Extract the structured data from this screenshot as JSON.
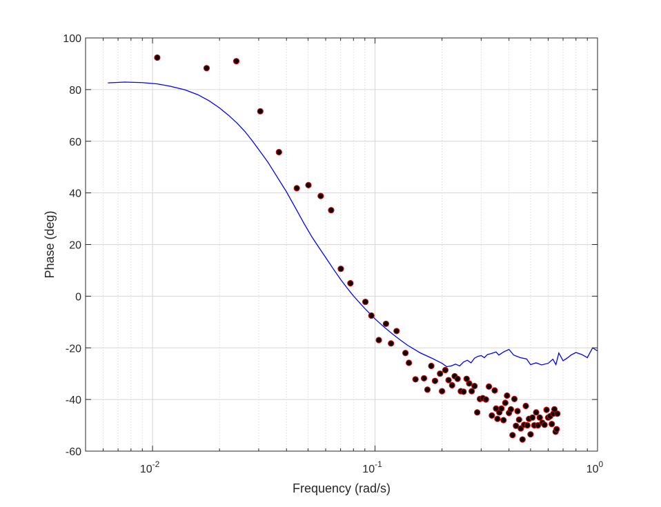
{
  "chart_data": {
    "type": "scatter",
    "xlabel": "Frequency (rad/s)",
    "ylabel": "Phase (deg)",
    "x_scale": "log",
    "xlim": [
      0.005,
      1
    ],
    "ylim": [
      -60,
      100
    ],
    "grid": true,
    "minor_grid_x": true,
    "x_tick_labels": [
      {
        "value": 0.01,
        "base": "10",
        "exp": "-2"
      },
      {
        "value": 0.1,
        "base": "10",
        "exp": "-1"
      },
      {
        "value": 1,
        "base": "10",
        "exp": "0"
      }
    ],
    "y_ticks": [
      -60,
      -40,
      -20,
      0,
      20,
      40,
      60,
      80,
      100
    ],
    "series": [
      {
        "kind": "line",
        "color": "#0000ff",
        "points": [
          [
            0.0063,
            82.6
          ],
          [
            0.0075,
            82.9
          ],
          [
            0.009,
            82.7
          ],
          [
            0.0105,
            82.2
          ],
          [
            0.012,
            81.3
          ],
          [
            0.014,
            79.9
          ],
          [
            0.016,
            78.0
          ],
          [
            0.018,
            75.6
          ],
          [
            0.02,
            72.9
          ],
          [
            0.022,
            70.0
          ],
          [
            0.024,
            67.0
          ],
          [
            0.026,
            63.8
          ],
          [
            0.028,
            60.3
          ],
          [
            0.03,
            56.8
          ],
          [
            0.033,
            51.9
          ],
          [
            0.036,
            46.7
          ],
          [
            0.04,
            40.4
          ],
          [
            0.044,
            34.0
          ],
          [
            0.048,
            28.1
          ],
          [
            0.052,
            23.0
          ],
          [
            0.056,
            18.8
          ],
          [
            0.06,
            15.0
          ],
          [
            0.065,
            10.5
          ],
          [
            0.07,
            6.5
          ],
          [
            0.075,
            3.1
          ],
          [
            0.08,
            0.1
          ],
          [
            0.09,
            -4.8
          ],
          [
            0.1,
            -8.8
          ],
          [
            0.11,
            -12.0
          ],
          [
            0.12,
            -14.7
          ],
          [
            0.13,
            -17.0
          ],
          [
            0.14,
            -19.0
          ],
          [
            0.16,
            -22.0
          ],
          [
            0.18,
            -24.0
          ],
          [
            0.2,
            -26.0
          ],
          [
            0.21,
            -27.3
          ],
          [
            0.22,
            -27.0
          ],
          [
            0.23,
            -26.3
          ],
          [
            0.24,
            -27.0
          ],
          [
            0.25,
            -25.5
          ],
          [
            0.26,
            -24.8
          ],
          [
            0.27,
            -25.8
          ],
          [
            0.28,
            -24.0
          ],
          [
            0.29,
            -23.3
          ],
          [
            0.3,
            -23.0
          ],
          [
            0.31,
            -23.8
          ],
          [
            0.32,
            -22.6
          ],
          [
            0.33,
            -22.3
          ],
          [
            0.35,
            -21.6
          ],
          [
            0.36,
            -22.8
          ],
          [
            0.38,
            -21.5
          ],
          [
            0.4,
            -20.6
          ],
          [
            0.42,
            -22.8
          ],
          [
            0.45,
            -23.8
          ],
          [
            0.48,
            -24.3
          ],
          [
            0.5,
            -26.5
          ],
          [
            0.53,
            -25.8
          ],
          [
            0.56,
            -26.6
          ],
          [
            0.6,
            -26.0
          ],
          [
            0.63,
            -24.4
          ],
          [
            0.65,
            -26.5
          ],
          [
            0.67,
            -22.0
          ],
          [
            0.7,
            -25.0
          ],
          [
            0.73,
            -24.0
          ],
          [
            0.76,
            -22.8
          ],
          [
            0.8,
            -21.8
          ],
          [
            0.85,
            -22.6
          ],
          [
            0.9,
            -23.8
          ],
          [
            0.95,
            -20.0
          ],
          [
            1.0,
            -21.2
          ]
        ]
      },
      {
        "kind": "scatter",
        "marker_fill": "#000000",
        "marker_edge": "#cc0000",
        "points": [
          [
            0.0105,
            92.4
          ],
          [
            0.0175,
            88.3
          ],
          [
            0.0238,
            91.0
          ],
          [
            0.0305,
            71.6
          ],
          [
            0.037,
            55.8
          ],
          [
            0.0445,
            41.8
          ],
          [
            0.0502,
            43.0
          ],
          [
            0.057,
            38.8
          ],
          [
            0.0635,
            33.3
          ],
          [
            0.0702,
            10.6
          ],
          [
            0.0775,
            5.0
          ],
          [
            0.0905,
            -2.2
          ],
          [
            0.0963,
            -7.5
          ],
          [
            0.104,
            -17.0
          ],
          [
            0.112,
            -10.7
          ],
          [
            0.118,
            -18.3
          ],
          [
            0.125,
            -13.5
          ],
          [
            0.137,
            -22.0
          ],
          [
            0.142,
            -25.8
          ],
          [
            0.152,
            -32.2
          ],
          [
            0.166,
            -31.8
          ],
          [
            0.172,
            -36.2
          ],
          [
            0.179,
            -27.0
          ],
          [
            0.186,
            -32.8
          ],
          [
            0.196,
            -30.0
          ],
          [
            0.2,
            -36.8
          ],
          [
            0.207,
            -28.6
          ],
          [
            0.214,
            -32.5
          ],
          [
            0.222,
            -34.5
          ],
          [
            0.228,
            -31.0
          ],
          [
            0.235,
            -32.0
          ],
          [
            0.243,
            -36.8
          ],
          [
            0.25,
            -37.0
          ],
          [
            0.258,
            -32.0
          ],
          [
            0.265,
            -33.8
          ],
          [
            0.272,
            -36.8
          ],
          [
            0.28,
            -34.8
          ],
          [
            0.288,
            -45.0
          ],
          [
            0.296,
            -39.8
          ],
          [
            0.305,
            -39.5
          ],
          [
            0.315,
            -40.0
          ],
          [
            0.325,
            -35.0
          ],
          [
            0.335,
            -46.2
          ],
          [
            0.345,
            -36.5
          ],
          [
            0.35,
            -43.5
          ],
          [
            0.355,
            -47.5
          ],
          [
            0.362,
            -45.0
          ],
          [
            0.37,
            -43.5
          ],
          [
            0.378,
            -48.0
          ],
          [
            0.385,
            -41.3
          ],
          [
            0.392,
            -38.5
          ],
          [
            0.4,
            -45.2
          ],
          [
            0.408,
            -43.8
          ],
          [
            0.415,
            -53.8
          ],
          [
            0.423,
            -39.8
          ],
          [
            0.43,
            -50.2
          ],
          [
            0.437,
            -44.5
          ],
          [
            0.444,
            -47.8
          ],
          [
            0.452,
            -51.2
          ],
          [
            0.46,
            -55.5
          ],
          [
            0.468,
            -49.8
          ],
          [
            0.476,
            -42.5
          ],
          [
            0.484,
            -50.0
          ],
          [
            0.492,
            -47.5
          ],
          [
            0.5,
            -53.5
          ],
          [
            0.51,
            -47.0
          ],
          [
            0.52,
            -50.0
          ],
          [
            0.53,
            -45.0
          ],
          [
            0.54,
            -50.0
          ],
          [
            0.55,
            -47.0
          ],
          [
            0.565,
            -49.0
          ],
          [
            0.578,
            -49.8
          ],
          [
            0.59,
            -44.0
          ],
          [
            0.6,
            -47.0
          ],
          [
            0.612,
            -46.5
          ],
          [
            0.623,
            -49.5
          ],
          [
            0.633,
            -45.5
          ],
          [
            0.64,
            -43.8
          ],
          [
            0.648,
            -52.5
          ],
          [
            0.655,
            -51.5
          ],
          [
            0.66,
            -45.5
          ]
        ]
      }
    ]
  }
}
